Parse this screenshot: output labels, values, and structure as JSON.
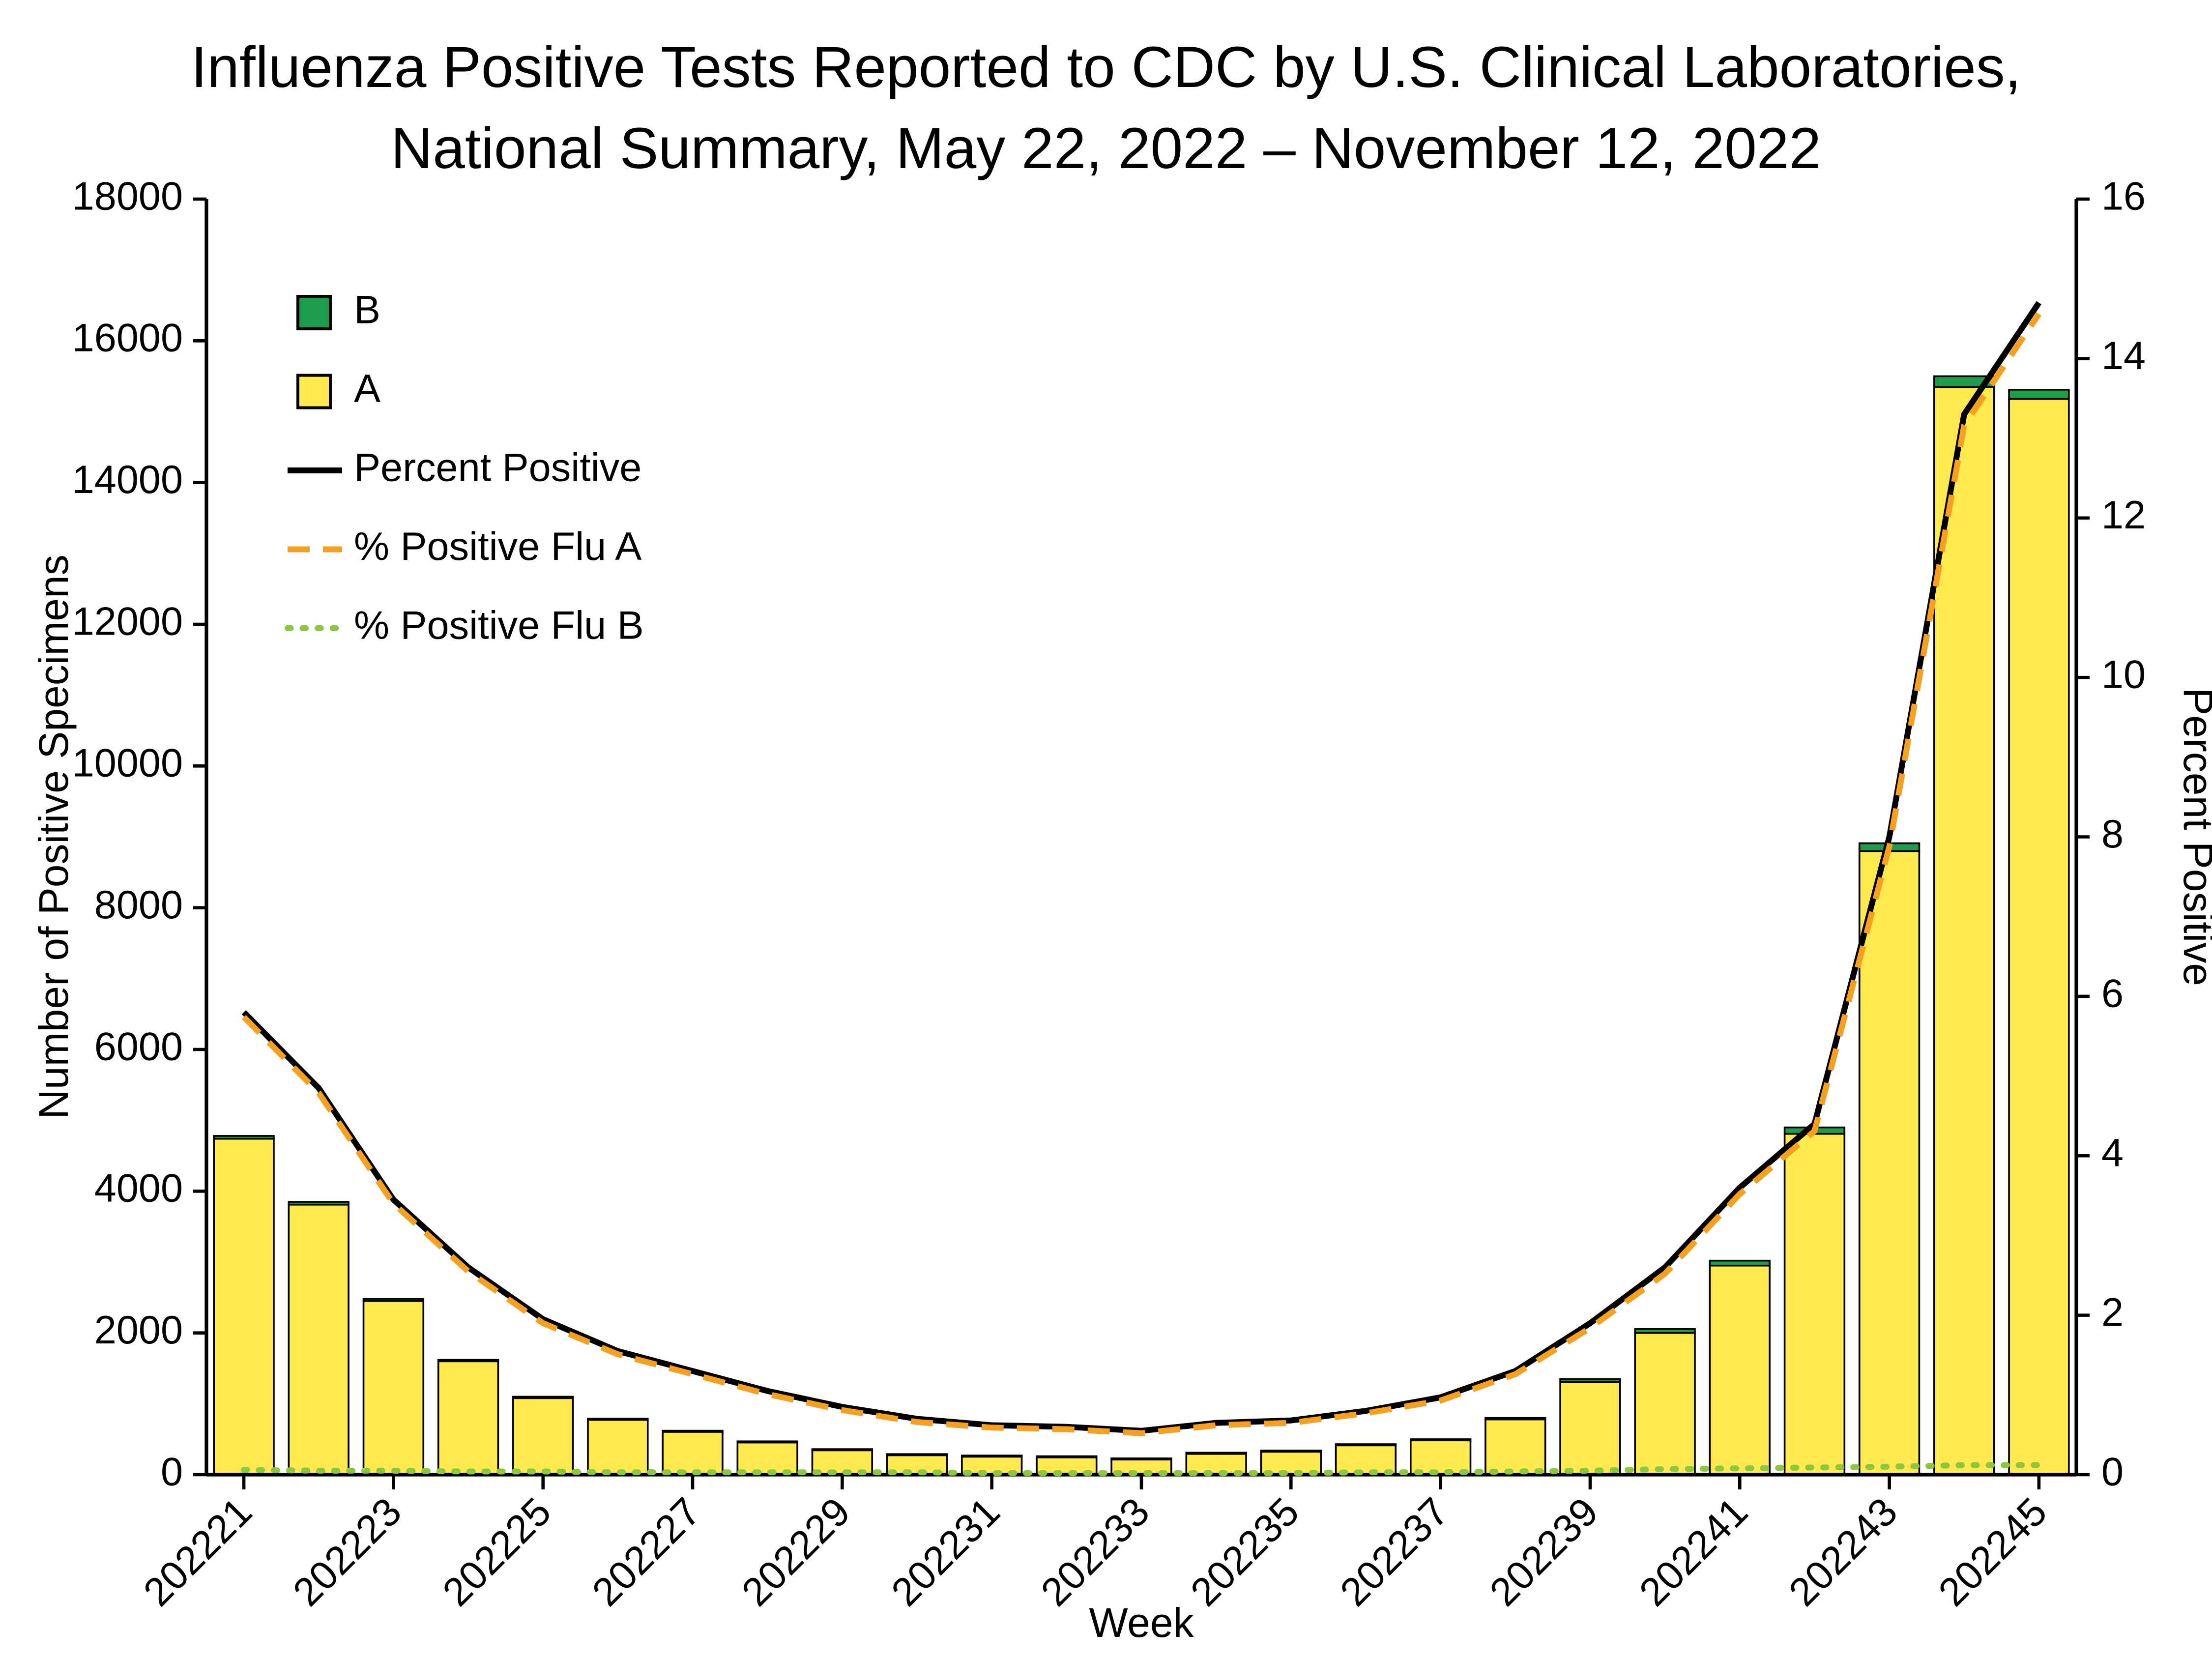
{
  "title": {
    "line1": "Influenza Positive Tests Reported to CDC by U.S. Clinical Laboratories,",
    "line2": "National Summary, May 22, 2022 – November 12, 2022"
  },
  "chart_data": {
    "type": "bar",
    "subtype": "stacked-bars-with-percent-lines",
    "xlabel": "Week",
    "y_left": {
      "label": "Number of Positive Specimens",
      "min": 0,
      "max": 18000,
      "step": 2000
    },
    "y_right": {
      "label": "Percent Positive",
      "min": 0,
      "max": 16,
      "step": 2
    },
    "weeks": [
      "202221",
      "202222",
      "202223",
      "202224",
      "202225",
      "202226",
      "202227",
      "202228",
      "202229",
      "202230",
      "202231",
      "202232",
      "202233",
      "202234",
      "202235",
      "202236",
      "202237",
      "202238",
      "202239",
      "202240",
      "202241",
      "202242",
      "202243",
      "202244",
      "202245"
    ],
    "x_tick_every": 2,
    "grid": "off",
    "legend_position": "top-left-inside",
    "bar_series": [
      {
        "name": "A",
        "color": "#FFE94E",
        "values": [
          4740,
          3810,
          2450,
          1600,
          1080,
          775,
          610,
          460,
          350,
          282,
          263,
          253,
          224,
          303,
          332,
          420,
          488,
          780,
          1310,
          2000,
          2950,
          4810,
          8800,
          15350,
          15180
        ]
      },
      {
        "name": "B",
        "color": "#1E9C49",
        "values": [
          40,
          40,
          30,
          20,
          20,
          15,
          10,
          10,
          10,
          8,
          7,
          7,
          6,
          7,
          8,
          10,
          12,
          20,
          40,
          55,
          70,
          90,
          110,
          150,
          130
        ]
      }
    ],
    "line_series": [
      {
        "name": "Percent Positive",
        "color": "#000000",
        "style": "solid",
        "values": [
          5.8,
          4.85,
          3.45,
          2.6,
          1.95,
          1.55,
          1.3,
          1.05,
          0.85,
          0.7,
          0.62,
          0.6,
          0.55,
          0.65,
          0.68,
          0.8,
          0.97,
          1.3,
          1.9,
          2.6,
          3.6,
          4.4,
          8.0,
          13.3,
          14.7
        ]
      },
      {
        "name": "% Positive Flu A",
        "color": "#F5A020",
        "style": "dashed",
        "values": [
          5.74,
          4.79,
          3.4,
          2.55,
          1.9,
          1.51,
          1.26,
          1.01,
          0.81,
          0.66,
          0.59,
          0.57,
          0.52,
          0.62,
          0.65,
          0.77,
          0.93,
          1.26,
          1.84,
          2.52,
          3.52,
          4.31,
          7.88,
          13.16,
          14.56
        ]
      },
      {
        "name": "% Positive Flu B",
        "color": "#8DC63F",
        "style": "dotted",
        "values": [
          0.06,
          0.05,
          0.05,
          0.04,
          0.04,
          0.03,
          0.03,
          0.03,
          0.03,
          0.03,
          0.02,
          0.02,
          0.02,
          0.02,
          0.02,
          0.03,
          0.03,
          0.04,
          0.05,
          0.07,
          0.08,
          0.09,
          0.1,
          0.12,
          0.12
        ]
      }
    ],
    "legend": [
      "B",
      "A",
      "Percent Positive",
      "% Positive Flu A",
      "% Positive Flu B"
    ]
  }
}
